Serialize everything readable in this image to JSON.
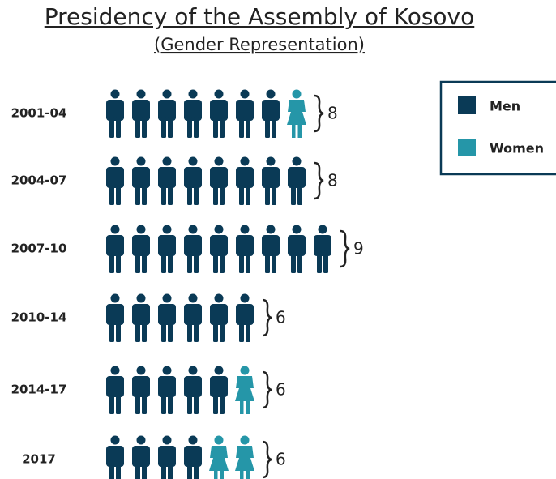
{
  "chart_data": {
    "type": "pictogram",
    "title": "Presidency of the Assembly of Kosovo",
    "subtitle": "(Gender Representation)",
    "categories": [
      "2001-04",
      "2004-07",
      "2007-10",
      "2010-14",
      "2014-17",
      "2017"
    ],
    "series": [
      {
        "name": "Men",
        "color": "#0a3a56",
        "values": [
          7,
          8,
          9,
          6,
          5,
          4
        ]
      },
      {
        "name": "Women",
        "color": "#2596a8",
        "values": [
          1,
          0,
          0,
          0,
          1,
          2
        ]
      }
    ],
    "totals": [
      8,
      8,
      9,
      6,
      6,
      6
    ]
  }
}
